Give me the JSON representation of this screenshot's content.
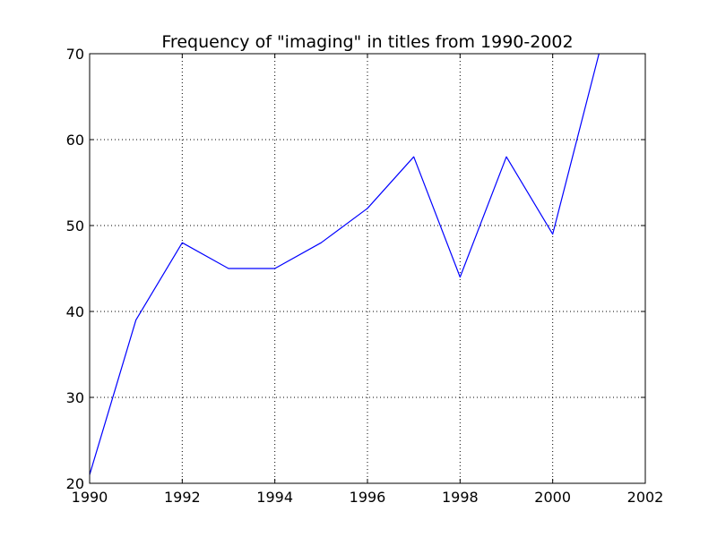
{
  "chart_data": {
    "type": "line",
    "title": "Frequency of \"imaging\" in titles from 1990-2002",
    "xlabel": "",
    "ylabel": "",
    "xlim": [
      1990,
      2002
    ],
    "ylim": [
      20,
      70
    ],
    "x_ticks": [
      1990,
      1992,
      1994,
      1996,
      1998,
      2000,
      2002
    ],
    "y_ticks": [
      20,
      30,
      40,
      50,
      60,
      70
    ],
    "grid": true,
    "series": [
      {
        "color": "#0000ff",
        "x": [
          1990,
          1991,
          1992,
          1993,
          1994,
          1995,
          1996,
          1997,
          1998,
          1999,
          2000,
          2001
        ],
        "values": [
          21,
          39,
          48,
          45,
          45,
          48,
          52,
          58,
          44,
          58,
          49,
          70
        ]
      }
    ]
  }
}
